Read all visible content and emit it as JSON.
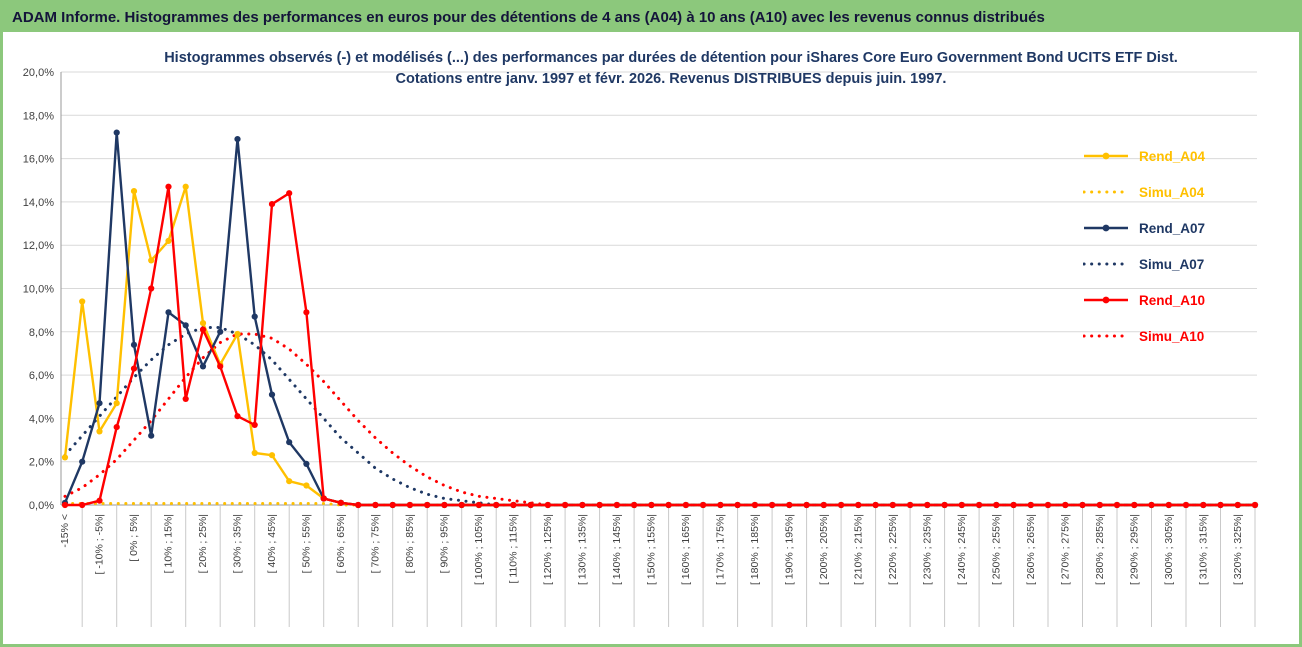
{
  "header": {
    "title": "ADAM Informe. Histogrammes des performances en euros pour des détentions de 4 ans (A04) à 10 ans (A10) avec les revenus connus distribués",
    "bg_color": "#8cc87c"
  },
  "chart_data": {
    "type": "line",
    "title_line1": "Histogrammes observés (-) et modélisés (...) des performances par durées de détention pour iShares Core Euro Government Bond UCITS ETF Dist.",
    "title_line2": "Cotations entre janv. 1997 et févr. 2026. Revenus DISTRIBUES depuis juin. 1997.",
    "title_color": "#1f3864",
    "grid": true,
    "ylim": [
      0,
      20
    ],
    "ytick_step": 2,
    "ytick_labels": [
      "0,0%",
      "2,0%",
      "4,0%",
      "6,0%",
      "8,0%",
      "10,0%",
      "12,0%",
      "14,0%",
      "16,0%",
      "18,0%",
      "20,0%"
    ],
    "total_bins": 70,
    "bins_per_label": 2,
    "bin_labels": [
      "-15% <",
      "[ -10% ; -5%|",
      "[ 0% ; 5%|",
      "[ 10% ; 15%|",
      "[ 20% ; 25%|",
      "[ 30% ; 35%|",
      "[ 40% ; 45%|",
      "[ 50% ; 55%|",
      "[ 60% ; 65%|",
      "[ 70% ; 75%|",
      "[ 80% ; 85%|",
      "[ 90% ; 95%|",
      "[ 100% ; 105%|",
      "[ 110% ; 115%|",
      "[ 120% ; 125%|",
      "[ 130% ; 135%|",
      "[ 140% ; 145%|",
      "[ 150% ; 155%|",
      "[ 160% ; 165%|",
      "[ 170% ; 175%|",
      "[ 180% ; 185%|",
      "[ 190% ; 195%|",
      "[ 200% ; 205%|",
      "[ 210% ; 215%|",
      "[ 220% ; 225%|",
      "[ 230% ; 235%|",
      "[ 240% ; 245%|",
      "[ 250% ; 255%|",
      "[ 260% ; 265%|",
      "[ 270% ; 275%|",
      "[ 280% ; 285%|",
      "[ 290% ; 295%|",
      "[ 300% ; 305%|",
      "[ 310% ; 315%|",
      "[ 320% ; 325%|"
    ],
    "legend_position": "right",
    "series": [
      {
        "name": "Rend_A04",
        "style": "solid",
        "color": "#ffc000",
        "values": [
          2.2,
          9.4,
          3.4,
          4.7,
          14.5,
          11.3,
          12.2,
          14.7,
          8.4,
          6.5,
          7.9,
          2.4,
          2.3,
          1.1,
          0.9,
          0.3,
          0.1,
          0
        ]
      },
      {
        "name": "Simu_A04",
        "style": "dotted",
        "color": "#ffc000",
        "values": [
          0.07,
          0.07,
          0.07,
          0.07,
          0.07,
          0.07,
          0.07,
          0.07,
          0.07,
          0.07,
          0.07,
          0.07,
          0.07,
          0.07,
          0.07,
          0.07,
          0
        ]
      },
      {
        "name": "Rend_A07",
        "style": "solid",
        "color": "#1f3864",
        "values": [
          0.1,
          2.0,
          4.7,
          17.2,
          7.4,
          3.2,
          8.9,
          8.3,
          6.4,
          8.0,
          16.9,
          8.7,
          5.1,
          2.9,
          1.9,
          0.3,
          0.1,
          0
        ]
      },
      {
        "name": "Simu_A07",
        "style": "dotted",
        "color": "#1f3864",
        "values": [
          2.3,
          3.2,
          4.1,
          5.0,
          5.9,
          6.7,
          7.4,
          7.9,
          8.2,
          8.2,
          7.9,
          7.4,
          6.7,
          5.8,
          4.9,
          4.0,
          3.1,
          2.4,
          1.7,
          1.2,
          0.8,
          0.5,
          0.3,
          0.2,
          0.1,
          0
        ]
      },
      {
        "name": "Rend_A10",
        "style": "solid",
        "color": "#ff0000",
        "values": [
          0,
          0,
          0.2,
          3.6,
          6.3,
          10.0,
          14.7,
          4.9,
          8.1,
          6.4,
          4.1,
          3.7,
          13.9,
          14.4,
          8.9,
          0.3,
          0.1,
          0
        ]
      },
      {
        "name": "Simu_A10",
        "style": "dotted",
        "color": "#ff0000",
        "values": [
          0.4,
          0.8,
          1.4,
          2.1,
          3.0,
          3.9,
          4.9,
          5.9,
          6.8,
          7.5,
          7.9,
          7.9,
          7.7,
          7.2,
          6.5,
          5.7,
          4.8,
          3.9,
          3.1,
          2.4,
          1.8,
          1.3,
          0.9,
          0.6,
          0.4,
          0.3,
          0.2,
          0.1,
          0
        ]
      }
    ],
    "note_values_padded_with_zeros_to_total_bins": true
  }
}
